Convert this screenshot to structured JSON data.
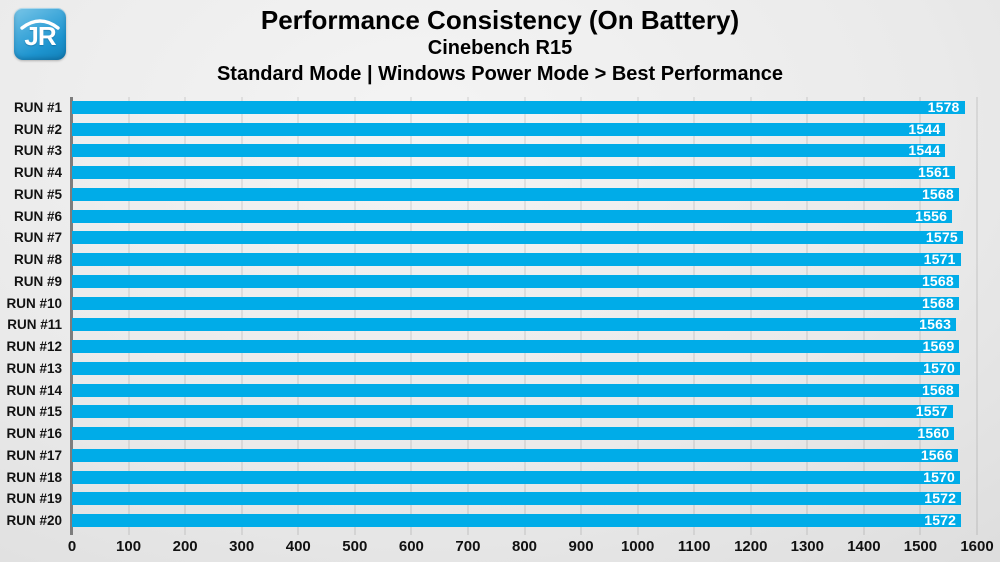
{
  "header": {
    "logo_text": "JR",
    "title": "Performance Consistency (On Battery)",
    "subtitle1": "Cinebench R15",
    "subtitle2": "Standard Mode | Windows Power Mode > Best Performance"
  },
  "chart_data": {
    "type": "bar",
    "orientation": "horizontal",
    "title": "Performance Consistency (On Battery)",
    "subtitle": "Cinebench R15 — Standard Mode | Windows Power Mode > Best Performance",
    "categories": [
      "RUN #1",
      "RUN #2",
      "RUN #3",
      "RUN #4",
      "RUN #5",
      "RUN #6",
      "RUN #7",
      "RUN #8",
      "RUN #9",
      "RUN #10",
      "RUN #11",
      "RUN #12",
      "RUN #13",
      "RUN #14",
      "RUN #15",
      "RUN #16",
      "RUN #17",
      "RUN #18",
      "RUN #19",
      "RUN #20"
    ],
    "values": [
      1578,
      1544,
      1544,
      1561,
      1568,
      1556,
      1575,
      1571,
      1568,
      1568,
      1563,
      1569,
      1570,
      1568,
      1557,
      1560,
      1566,
      1570,
      1572,
      1572
    ],
    "xlim": [
      0,
      1600
    ],
    "x_ticks": [
      0,
      100,
      200,
      300,
      400,
      500,
      600,
      700,
      800,
      900,
      1000,
      1100,
      1200,
      1300,
      1400,
      1500,
      1600
    ],
    "grid": true,
    "legend": "none",
    "value_labels": "inside-end"
  },
  "colors": {
    "bar": "#00ace8",
    "value_label": "#ffffff",
    "axis_line": "#7d7d7d",
    "logo_blue": "#1d94cf",
    "text": "#111111"
  }
}
